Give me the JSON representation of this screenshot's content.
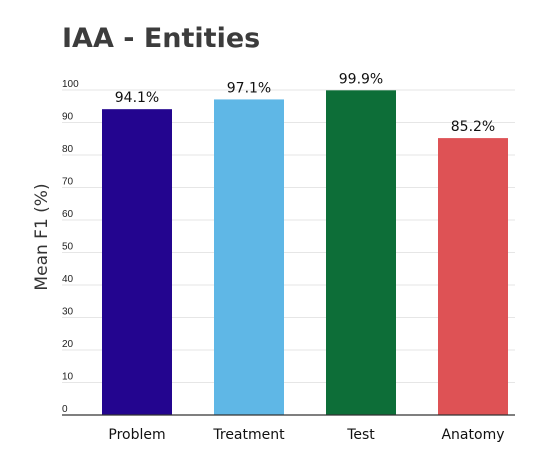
{
  "chart_data": {
    "type": "bar",
    "title": "IAA - Entities",
    "ylabel": "Mean F1 (%)",
    "xlabel": "",
    "categories": [
      "Problem",
      "Treatment",
      "Test",
      "Anatomy"
    ],
    "values": [
      94.1,
      97.1,
      99.9,
      85.2
    ],
    "data_labels": [
      "94.1%",
      "97.1%",
      "99.9%",
      "85.2%"
    ],
    "colors": [
      "#23058f",
      "#5fb7e6",
      "#0d6e38",
      "#de5255"
    ],
    "ylim": [
      0,
      100
    ],
    "yticks": [
      0,
      10,
      20,
      30,
      40,
      50,
      60,
      70,
      80,
      90,
      100
    ],
    "grid": true,
    "legend": "none"
  }
}
